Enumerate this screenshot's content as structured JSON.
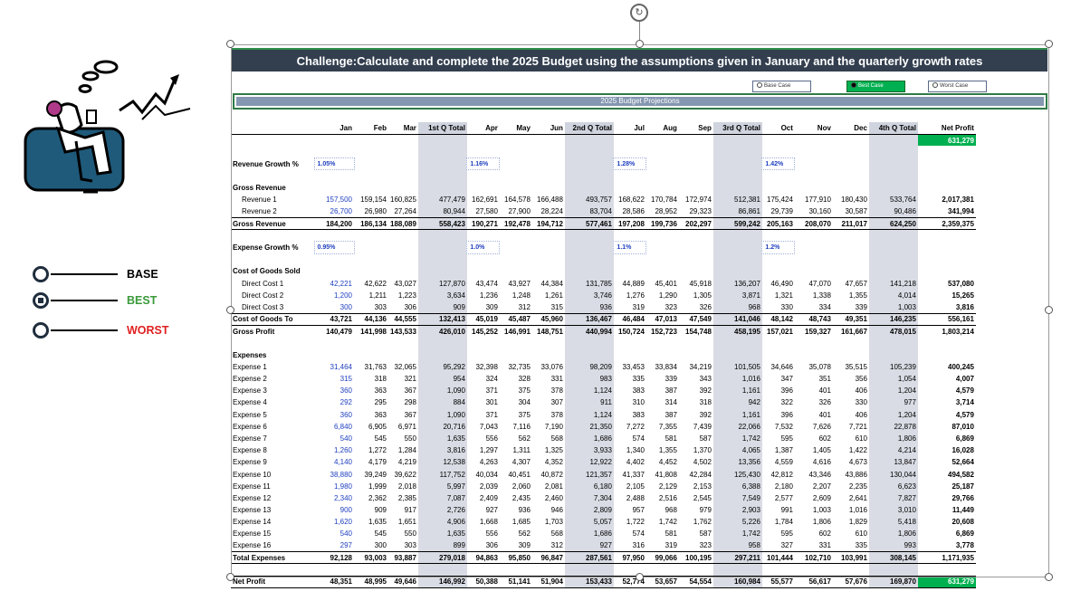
{
  "title": "Challenge:Calculate and complete the 2025 Budget using the assumptions given in January and the quarterly growth rates",
  "subtitle": "2025 Budget Projections",
  "cases": [
    {
      "label": "Base Case",
      "active": false
    },
    {
      "label": "Best Case",
      "active": true
    },
    {
      "label": "Worst Case",
      "active": false
    }
  ],
  "legend": [
    {
      "label": "BASE",
      "color": "#000000",
      "selected": false
    },
    {
      "label": "BEST",
      "color": "#3a9a3a",
      "selected": true
    },
    {
      "label": "WORST",
      "color": "#e02020",
      "selected": false
    }
  ],
  "columns": [
    "Jan",
    "Feb",
    "Mar",
    "1st Q Total",
    "Apr",
    "May",
    "Jun",
    "2nd Q Total",
    "Jul",
    "Aug",
    "Sep",
    "3rd Q Total",
    "Oct",
    "Nov",
    "Dec",
    "4th Q Total",
    "Net Profit"
  ],
  "net_profit_header_value": "631,279",
  "revenue_growth": {
    "label": "Revenue Growth %",
    "rates": [
      "1.05%",
      "1.16%",
      "1.28%",
      "1.42%"
    ]
  },
  "expense_growth": {
    "label": "Expense Growth %",
    "rates": [
      "0.95%",
      "1.0%",
      "1.1%",
      "1.2%"
    ]
  },
  "sections": {
    "gross_revenue": "Gross Revenue",
    "cogs": "Cost of Goods Sold",
    "expenses": "Expenses"
  },
  "revenue_rows": [
    {
      "label": "Revenue 1",
      "values": [
        "157,500",
        "159,154",
        "160,825",
        "477,479",
        "162,691",
        "164,578",
        "166,488",
        "493,757",
        "168,622",
        "170,784",
        "172,974",
        "512,381",
        "175,424",
        "177,910",
        "180,430",
        "533,764",
        "2,017,381"
      ]
    },
    {
      "label": "Revenue 2",
      "values": [
        "26,700",
        "26,980",
        "27,264",
        "80,944",
        "27,580",
        "27,900",
        "28,224",
        "83,704",
        "28,586",
        "28,952",
        "29,323",
        "86,861",
        "29,739",
        "30,160",
        "30,587",
        "90,486",
        "341,994"
      ]
    }
  ],
  "gross_revenue_total": {
    "label": "Gross Revenue",
    "values": [
      "184,200",
      "186,134",
      "188,089",
      "558,423",
      "190,271",
      "192,478",
      "194,712",
      "577,461",
      "197,208",
      "199,736",
      "202,297",
      "599,242",
      "205,163",
      "208,070",
      "211,017",
      "624,250",
      "2,359,375"
    ]
  },
  "cogs_rows": [
    {
      "label": "Direct Cost 1",
      "values": [
        "42,221",
        "42,622",
        "43,027",
        "127,870",
        "43,474",
        "43,927",
        "44,384",
        "131,785",
        "44,889",
        "45,401",
        "45,918",
        "136,207",
        "46,490",
        "47,070",
        "47,657",
        "141,218",
        "537,080"
      ]
    },
    {
      "label": "Direct Cost 2",
      "values": [
        "1,200",
        "1,211",
        "1,223",
        "3,634",
        "1,236",
        "1,248",
        "1,261",
        "3,746",
        "1,276",
        "1,290",
        "1,305",
        "3,871",
        "1,321",
        "1,338",
        "1,355",
        "4,014",
        "15,265"
      ]
    },
    {
      "label": "Direct Cost 3",
      "values": [
        "300",
        "303",
        "306",
        "909",
        "309",
        "312",
        "315",
        "936",
        "319",
        "323",
        "326",
        "968",
        "330",
        "334",
        "339",
        "1,003",
        "3,816"
      ]
    }
  ],
  "cogs_total": {
    "label": "Cost of Goods To",
    "values": [
      "43,721",
      "44,136",
      "44,555",
      "132,413",
      "45,019",
      "45,487",
      "45,960",
      "136,467",
      "46,484",
      "47,013",
      "47,549",
      "141,046",
      "48,142",
      "48,743",
      "49,351",
      "146,235",
      "556,161"
    ]
  },
  "gross_profit": {
    "label": "Gross Profit",
    "values": [
      "140,479",
      "141,998",
      "143,533",
      "426,010",
      "145,252",
      "146,991",
      "148,751",
      "440,994",
      "150,724",
      "152,723",
      "154,748",
      "458,195",
      "157,021",
      "159,327",
      "161,667",
      "478,015",
      "1,803,214"
    ]
  },
  "expense_rows": [
    {
      "label": "Expense 1",
      "values": [
        "31,464",
        "31,763",
        "32,065",
        "95,292",
        "32,398",
        "32,735",
        "33,076",
        "98,209",
        "33,453",
        "33,834",
        "34,219",
        "101,505",
        "34,646",
        "35,078",
        "35,515",
        "105,239",
        "400,245"
      ]
    },
    {
      "label": "Expense 2",
      "values": [
        "315",
        "318",
        "321",
        "954",
        "324",
        "328",
        "331",
        "983",
        "335",
        "339",
        "343",
        "1,016",
        "347",
        "351",
        "356",
        "1,054",
        "4,007"
      ]
    },
    {
      "label": "Expense 3",
      "values": [
        "360",
        "363",
        "367",
        "1,090",
        "371",
        "375",
        "378",
        "1,124",
        "383",
        "387",
        "392",
        "1,161",
        "396",
        "401",
        "406",
        "1,204",
        "4,579"
      ]
    },
    {
      "label": "Expense 4",
      "values": [
        "292",
        "295",
        "298",
        "884",
        "301",
        "304",
        "307",
        "911",
        "310",
        "314",
        "318",
        "942",
        "322",
        "326",
        "330",
        "977",
        "3,714"
      ]
    },
    {
      "label": "Expense 5",
      "values": [
        "360",
        "363",
        "367",
        "1,090",
        "371",
        "375",
        "378",
        "1,124",
        "383",
        "387",
        "392",
        "1,161",
        "396",
        "401",
        "406",
        "1,204",
        "4,579"
      ]
    },
    {
      "label": "Expense 6",
      "values": [
        "6,840",
        "6,905",
        "6,971",
        "20,716",
        "7,043",
        "7,116",
        "7,190",
        "21,350",
        "7,272",
        "7,355",
        "7,439",
        "22,066",
        "7,532",
        "7,626",
        "7,721",
        "22,878",
        "87,010"
      ]
    },
    {
      "label": "Expense 7",
      "values": [
        "540",
        "545",
        "550",
        "1,635",
        "556",
        "562",
        "568",
        "1,686",
        "574",
        "581",
        "587",
        "1,742",
        "595",
        "602",
        "610",
        "1,806",
        "6,869"
      ]
    },
    {
      "label": "Expense 8",
      "values": [
        "1,260",
        "1,272",
        "1,284",
        "3,816",
        "1,297",
        "1,311",
        "1,325",
        "3,933",
        "1,340",
        "1,355",
        "1,370",
        "4,065",
        "1,387",
        "1,405",
        "1,422",
        "4,214",
        "16,028"
      ]
    },
    {
      "label": "Expense 9",
      "values": [
        "4,140",
        "4,179",
        "4,219",
        "12,538",
        "4,263",
        "4,307",
        "4,352",
        "12,922",
        "4,402",
        "4,452",
        "4,502",
        "13,356",
        "4,559",
        "4,616",
        "4,673",
        "13,847",
        "52,664"
      ]
    },
    {
      "label": "Expense 10",
      "values": [
        "38,880",
        "39,249",
        "39,622",
        "117,752",
        "40,034",
        "40,451",
        "40,872",
        "121,357",
        "41,337",
        "41,808",
        "42,284",
        "125,430",
        "42,812",
        "43,346",
        "43,886",
        "130,044",
        "494,582"
      ]
    },
    {
      "label": "Expense 11",
      "values": [
        "1,980",
        "1,999",
        "2,018",
        "5,997",
        "2,039",
        "2,060",
        "2,081",
        "6,180",
        "2,105",
        "2,129",
        "2,153",
        "6,388",
        "2,180",
        "2,207",
        "2,235",
        "6,623",
        "25,187"
      ]
    },
    {
      "label": "Expense 12",
      "values": [
        "2,340",
        "2,362",
        "2,385",
        "7,087",
        "2,409",
        "2,435",
        "2,460",
        "7,304",
        "2,488",
        "2,516",
        "2,545",
        "7,549",
        "2,577",
        "2,609",
        "2,641",
        "7,827",
        "29,766"
      ]
    },
    {
      "label": "Expense 13",
      "values": [
        "900",
        "909",
        "917",
        "2,726",
        "927",
        "936",
        "946",
        "2,809",
        "957",
        "968",
        "979",
        "2,903",
        "991",
        "1,003",
        "1,016",
        "3,010",
        "11,449"
      ]
    },
    {
      "label": "Expense 14",
      "values": [
        "1,620",
        "1,635",
        "1,651",
        "4,906",
        "1,668",
        "1,685",
        "1,703",
        "5,057",
        "1,722",
        "1,742",
        "1,762",
        "5,226",
        "1,784",
        "1,806",
        "1,829",
        "5,418",
        "20,608"
      ]
    },
    {
      "label": "Expense 15",
      "values": [
        "540",
        "545",
        "550",
        "1,635",
        "556",
        "562",
        "568",
        "1,686",
        "574",
        "581",
        "587",
        "1,742",
        "595",
        "602",
        "610",
        "1,806",
        "6,869"
      ]
    },
    {
      "label": "Expense 16",
      "values": [
        "297",
        "300",
        "303",
        "899",
        "306",
        "309",
        "312",
        "927",
        "316",
        "319",
        "323",
        "958",
        "327",
        "331",
        "335",
        "993",
        "3,778"
      ]
    }
  ],
  "expenses_total": {
    "label": "Total Expenses",
    "values": [
      "92,128",
      "93,003",
      "93,887",
      "279,018",
      "94,863",
      "95,850",
      "96,847",
      "287,561",
      "97,950",
      "99,066",
      "100,195",
      "297,211",
      "101,444",
      "102,710",
      "103,991",
      "308,145",
      "1,171,935"
    ]
  },
  "net_profit": {
    "label": "Net Profit",
    "values": [
      "48,351",
      "48,995",
      "49,646",
      "146,992",
      "50,388",
      "51,141",
      "51,904",
      "153,433",
      "52,774",
      "53,657",
      "54,554",
      "160,984",
      "55,577",
      "56,617",
      "57,676",
      "169,870",
      "631,279"
    ]
  }
}
